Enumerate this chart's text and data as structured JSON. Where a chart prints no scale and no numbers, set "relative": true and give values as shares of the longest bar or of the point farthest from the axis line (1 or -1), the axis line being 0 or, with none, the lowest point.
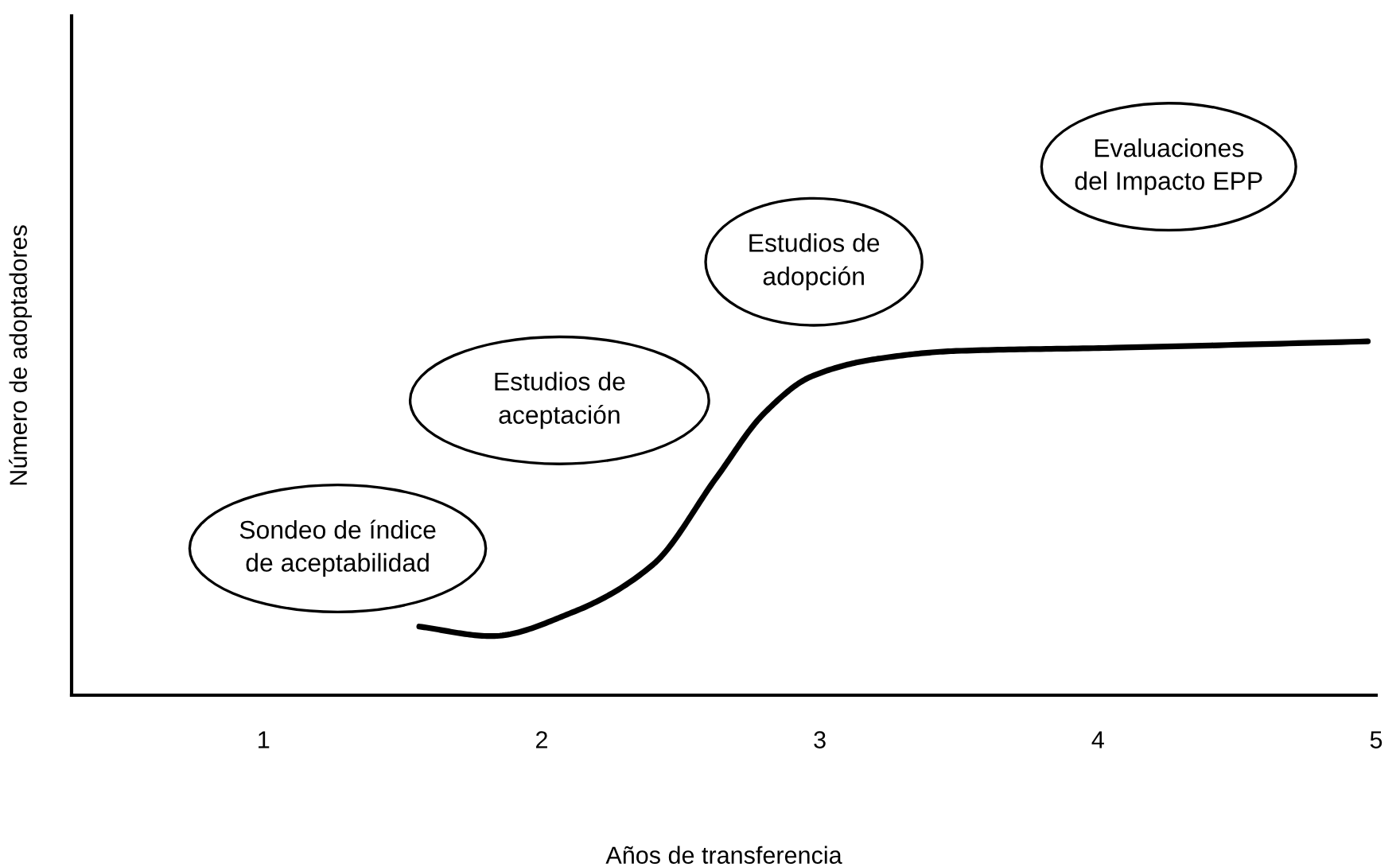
{
  "chart_data": {
    "type": "line",
    "relative": true,
    "xlabel": "Años de transferencia",
    "ylabel": "Número de adoptadores",
    "x": [
      1.56,
      1.82,
      2.11,
      2.4,
      2.63,
      2.8,
      2.97,
      3.2,
      3.49,
      4.06,
      4.97
    ],
    "series": [
      {
        "color": "#000000",
        "values": [
          0.194,
          0.167,
          0.234,
          0.369,
          0.617,
          0.797,
          0.901,
          0.95,
          0.973,
          0.982,
          1.0
        ]
      }
    ],
    "xlim": [
      0.31,
      5
    ],
    "xticks": [
      1,
      2,
      3,
      4,
      5
    ],
    "tick_labels": "x",
    "grid": false,
    "legend": false,
    "marker": "none",
    "line_style": "solid",
    "annotations": [
      "Sondeo de índice\nde aceptabilidad",
      "Estudios de\naceptación",
      "Estudios de\nadopción",
      "Evaluaciones\ndel Impacto EPP"
    ]
  }
}
